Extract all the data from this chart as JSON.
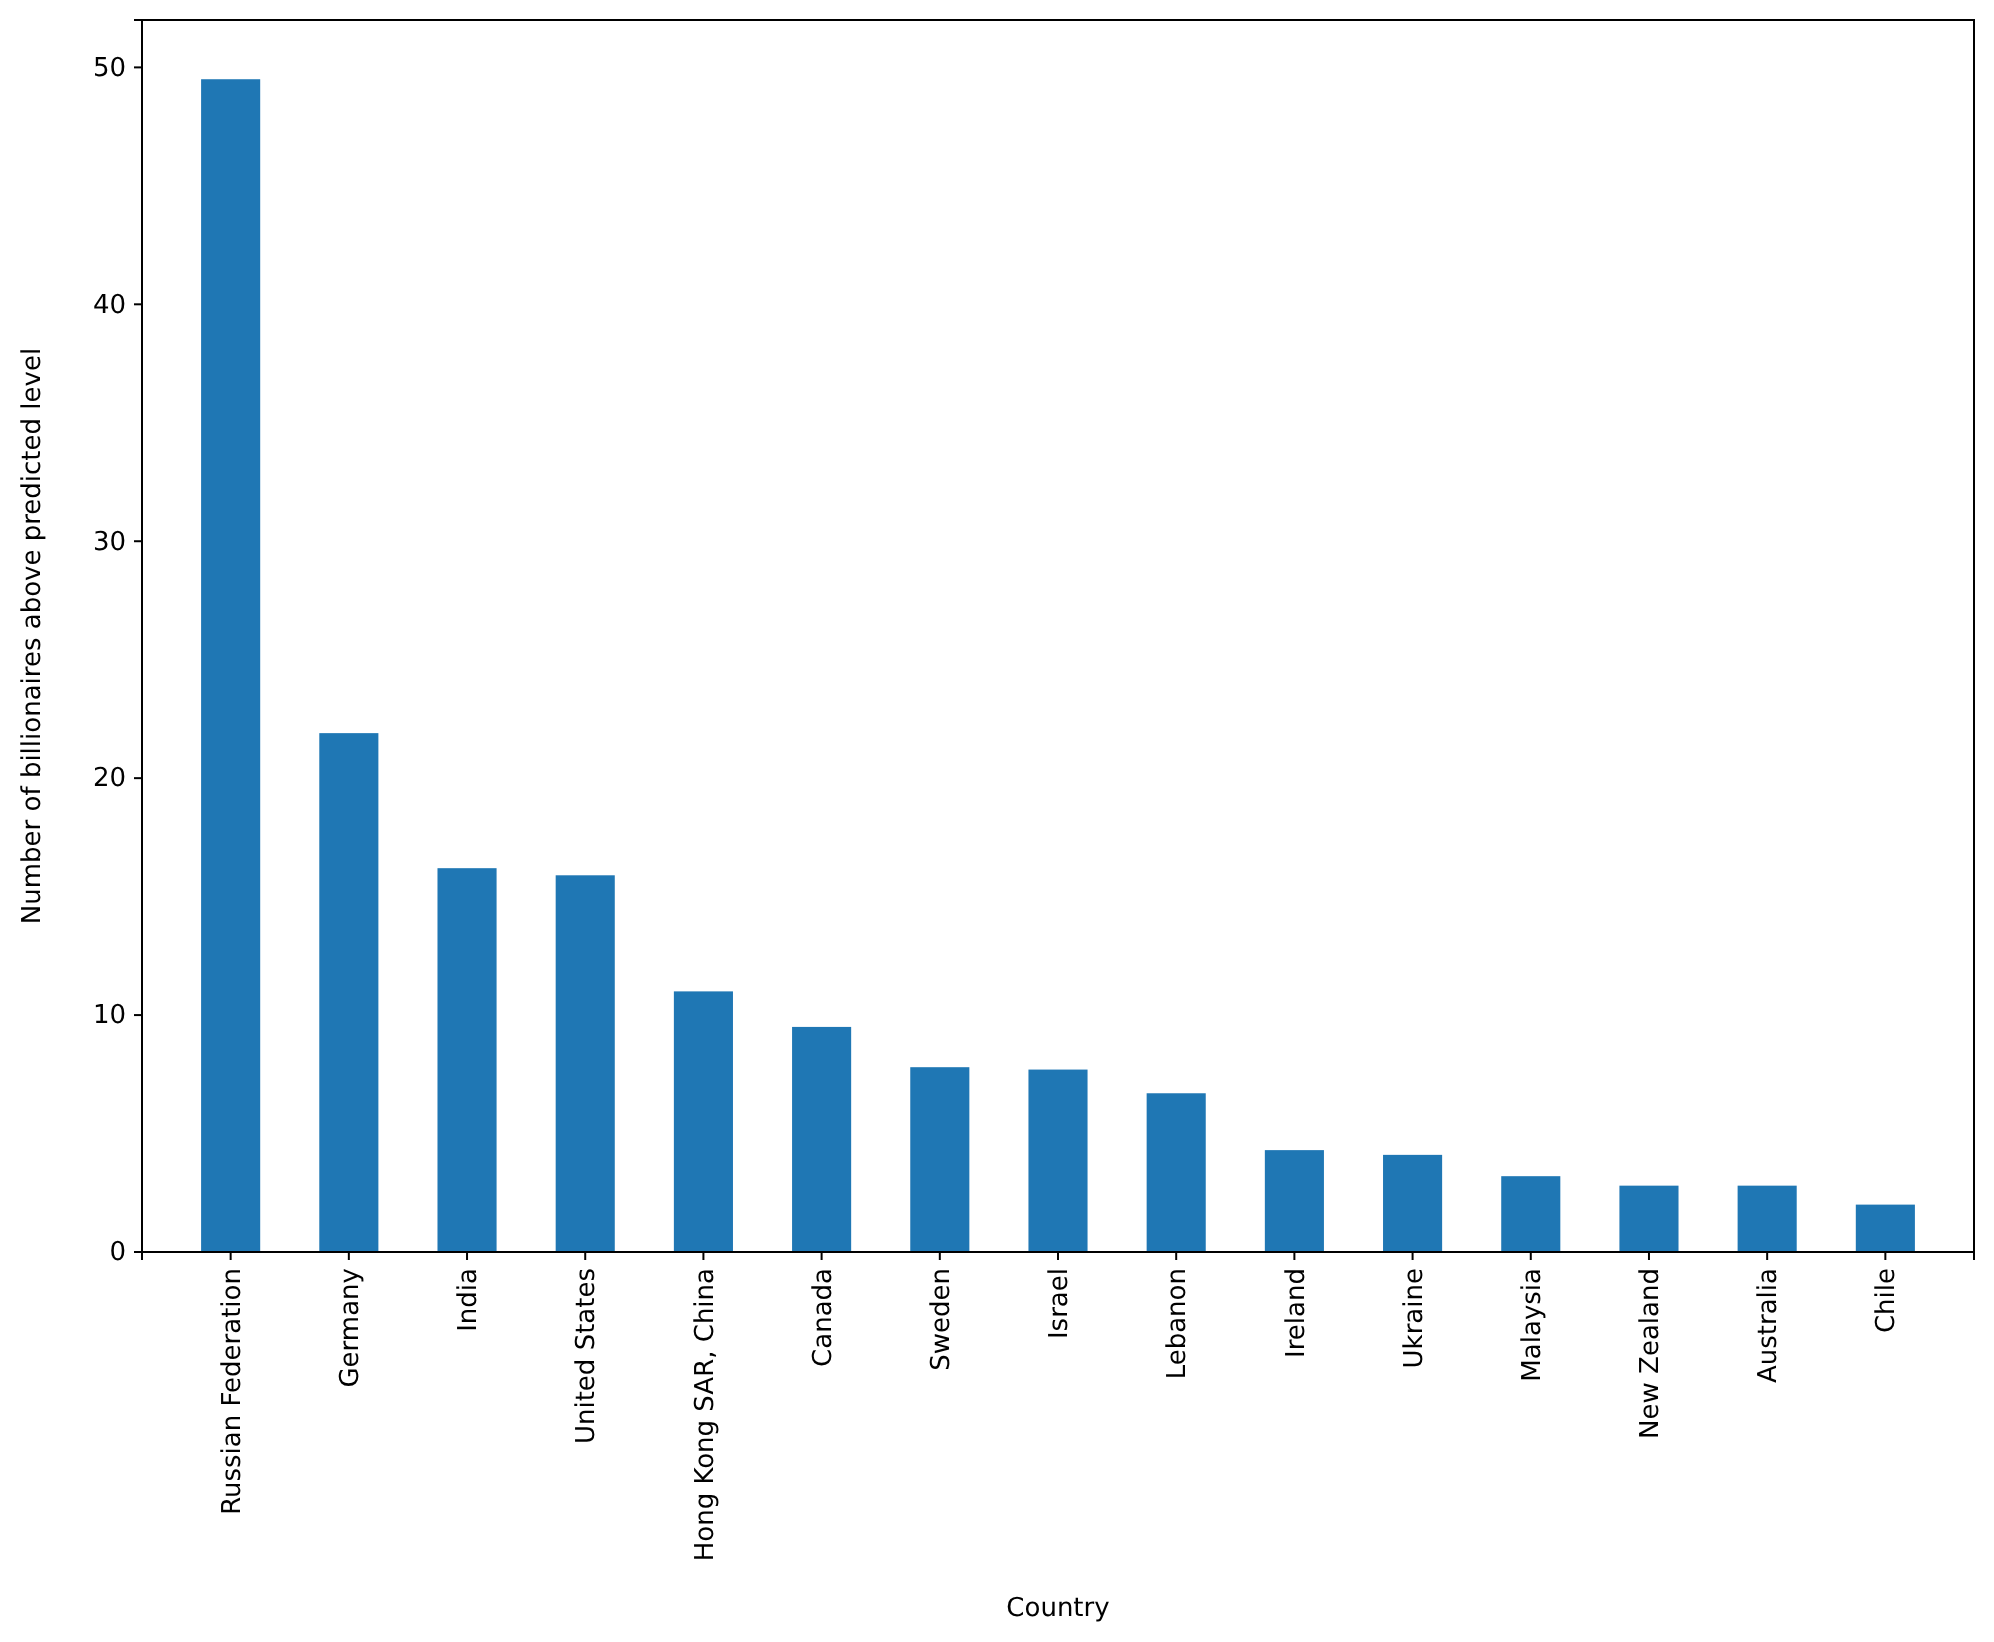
{
  "chart_data": {
    "type": "bar",
    "xlabel": "Country",
    "ylabel": "Number of billionaires above predicted level",
    "categories": [
      "Russian Federation",
      "Germany",
      "India",
      "United States",
      "Hong Kong SAR, China",
      "Canada",
      "Sweden",
      "Israel",
      "Lebanon",
      "Ireland",
      "Ukraine",
      "Malaysia",
      "New Zealand",
      "Australia",
      "Chile"
    ],
    "values": [
      49.5,
      21.9,
      16.2,
      15.9,
      11.0,
      9.5,
      7.8,
      7.7,
      6.7,
      4.3,
      4.1,
      3.2,
      2.8,
      2.8,
      2.0
    ],
    "color": "#1f77b4",
    "ylim": [
      0,
      52
    ],
    "yticks": [
      0,
      10,
      20,
      30,
      40,
      50
    ],
    "grid": false
  }
}
